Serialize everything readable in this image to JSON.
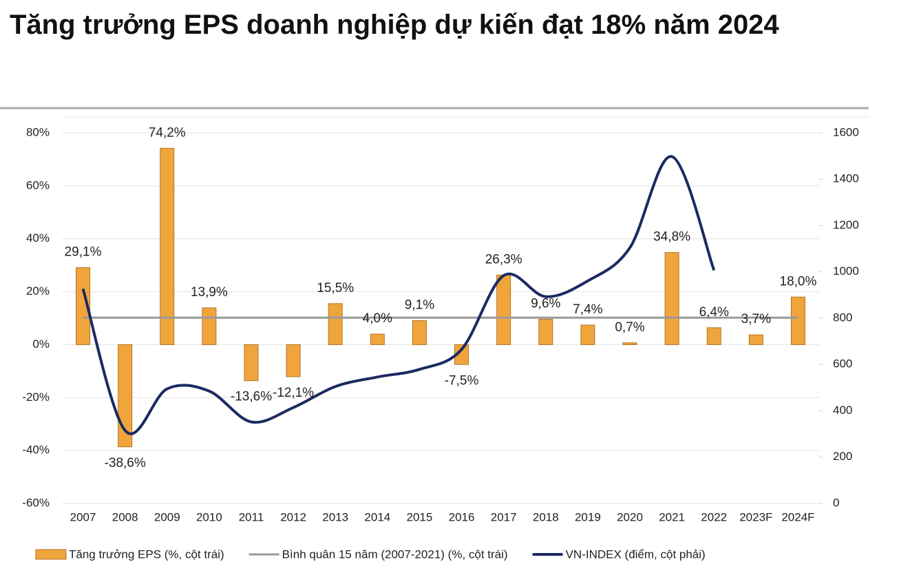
{
  "chart_data": {
    "type": "bar",
    "title": "Tăng trưởng EPS doanh nghiệp dự kiến đạt 18% năm 2024",
    "categories": [
      "2007",
      "2008",
      "2009",
      "2010",
      "2011",
      "2012",
      "2013",
      "2014",
      "2015",
      "2016",
      "2017",
      "2018",
      "2019",
      "2020",
      "2021",
      "2022",
      "2023F",
      "2024F"
    ],
    "series": [
      {
        "name": "Tăng trưởng EPS (%, cột trái)",
        "type": "bar",
        "color": "#f0a53c",
        "axis": "y",
        "values": [
          29.1,
          -38.6,
          74.2,
          13.9,
          -13.6,
          -12.1,
          15.5,
          4.0,
          9.1,
          -7.5,
          26.3,
          9.6,
          7.4,
          0.7,
          34.8,
          6.4,
          3.7,
          18.0
        ],
        "value_labels": [
          "29,1%",
          "-38,6%",
          "74,2%",
          "13,9%",
          "-13,6%",
          "-12,1%",
          "15,5%",
          "4,0%",
          "9,1%",
          "-7,5%",
          "26,3%",
          "9,6%",
          "7,4%",
          "0,7%",
          "34,8%",
          "6,4%",
          "3,7%",
          "18,0%"
        ]
      },
      {
        "name": "Bình quân 15 năm (2007-2021) (%, cột trái)",
        "type": "line",
        "color": "#9a9a9a",
        "axis": "y",
        "values": [
          10.2,
          10.2,
          10.2,
          10.2,
          10.2,
          10.2,
          10.2,
          10.2,
          10.2,
          10.2,
          10.2,
          10.2,
          10.2,
          10.2,
          10.2,
          10.2,
          10.2,
          10.2
        ]
      },
      {
        "name": "VN-INDEX (điểm, cột phải)",
        "type": "line",
        "color": "#1c2a63",
        "axis": "y2",
        "values": [
          927,
          315,
          495,
          485,
          352,
          414,
          505,
          546,
          579,
          665,
          984,
          893,
          961,
          1104,
          1498,
          1007,
          null,
          null
        ]
      }
    ],
    "ylim": [
      -60,
      80
    ],
    "yticks": [
      {
        "value": -60,
        "label": "-60%"
      },
      {
        "value": -40,
        "label": "-40%"
      },
      {
        "value": -20,
        "label": "-20%"
      },
      {
        "value": 0,
        "label": "0%"
      },
      {
        "value": 20,
        "label": "20%"
      },
      {
        "value": 40,
        "label": "40%"
      },
      {
        "value": 60,
        "label": "60%"
      },
      {
        "value": 80,
        "label": "80%"
      }
    ],
    "y2lim": [
      0,
      1600
    ],
    "y2ticks": [
      0,
      200,
      400,
      600,
      800,
      1000,
      1200,
      1400,
      1600
    ],
    "grid": true
  }
}
